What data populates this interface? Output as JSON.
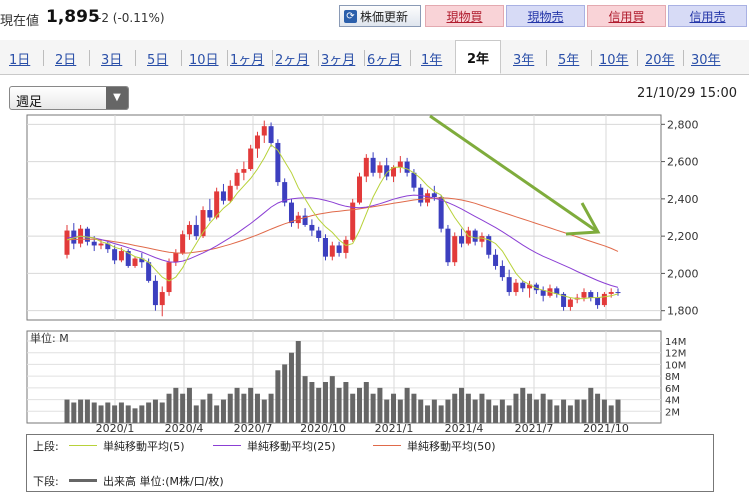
{
  "header": {
    "price_label": "現在値",
    "price": "1,895",
    "change": "-2 (-0.11%)",
    "refresh_label": "株価更新",
    "buttons": [
      {
        "label": "現物買",
        "type": "buy"
      },
      {
        "label": "現物売",
        "type": "sell"
      },
      {
        "label": "信用買",
        "type": "buy"
      },
      {
        "label": "信用売",
        "type": "sell"
      }
    ]
  },
  "tabs": [
    "1日",
    "2日",
    "3日",
    "5日",
    "10日",
    "1ヶ月",
    "2ヶ月",
    "3ヶ月",
    "6ヶ月",
    "1年",
    "2年",
    "3年",
    "5年",
    "10年",
    "20年",
    "30年"
  ],
  "active_tab": "2年",
  "period_select": "週足",
  "datetime": "21/10/29 15:00",
  "colors": {
    "up": "#e23a3a",
    "down": "#3c3fbf",
    "ma5": "#b8d23a",
    "ma25": "#8b3fd4",
    "ma50": "#e06a4a",
    "arrow": "#7fac3c",
    "volume": "#666666"
  },
  "legend": {
    "upper_label": "上段:",
    "lower_label": "下段:",
    "ma5": "単純移動平均(5)",
    "ma25": "単純移動平均(25)",
    "ma50": "単純移動平均(50)",
    "volume": "出来高 単位:(M株/口/枚)"
  },
  "chart_data": {
    "type": "candlestick",
    "y_ticks": [
      "2,800",
      "2,600",
      "2,400",
      "2,200",
      "2,000",
      "1,800"
    ],
    "ylim": [
      1750,
      2850
    ],
    "x_ticks": [
      "2020/1",
      "2020/4",
      "2020/7",
      "2020/10",
      "2021/1",
      "2021/4",
      "2021/7",
      "2021/10"
    ],
    "volume_unit_label": "単位: M",
    "volume_ticks": [
      "14M",
      "12M",
      "10M",
      "8M",
      "6M",
      "4M",
      "2M"
    ],
    "volume_ylim": [
      0,
      14
    ],
    "ohlc": [
      [
        2100,
        2260,
        2080,
        2230
      ],
      [
        2230,
        2270,
        2130,
        2160
      ],
      [
        2160,
        2260,
        2140,
        2240
      ],
      [
        2240,
        2250,
        2150,
        2170
      ],
      [
        2170,
        2200,
        2120,
        2150
      ],
      [
        2150,
        2180,
        2130,
        2160
      ],
      [
        2160,
        2170,
        2110,
        2130
      ],
      [
        2130,
        2150,
        2050,
        2070
      ],
      [
        2070,
        2140,
        2060,
        2120
      ],
      [
        2120,
        2130,
        2030,
        2040
      ],
      [
        2040,
        2090,
        2030,
        2080
      ],
      [
        2080,
        2110,
        2030,
        2060
      ],
      [
        2060,
        2080,
        1950,
        1960
      ],
      [
        1960,
        1990,
        1800,
        1830
      ],
      [
        1830,
        1930,
        1770,
        1900
      ],
      [
        1900,
        2080,
        1880,
        2060
      ],
      [
        2060,
        2130,
        2040,
        2110
      ],
      [
        2110,
        2230,
        2100,
        2210
      ],
      [
        2210,
        2280,
        2180,
        2260
      ],
      [
        2260,
        2310,
        2180,
        2200
      ],
      [
        2200,
        2360,
        2190,
        2340
      ],
      [
        2340,
        2400,
        2280,
        2300
      ],
      [
        2300,
        2460,
        2290,
        2440
      ],
      [
        2440,
        2480,
        2370,
        2390
      ],
      [
        2390,
        2500,
        2380,
        2470
      ],
      [
        2470,
        2560,
        2450,
        2540
      ],
      [
        2540,
        2600,
        2500,
        2560
      ],
      [
        2560,
        2690,
        2550,
        2670
      ],
      [
        2670,
        2760,
        2620,
        2740
      ],
      [
        2740,
        2820,
        2700,
        2790
      ],
      [
        2790,
        2810,
        2680,
        2700
      ],
      [
        2700,
        2720,
        2470,
        2490
      ],
      [
        2490,
        2510,
        2360,
        2380
      ],
      [
        2380,
        2400,
        2250,
        2270
      ],
      [
        2270,
        2330,
        2240,
        2310
      ],
      [
        2310,
        2350,
        2250,
        2260
      ],
      [
        2260,
        2290,
        2200,
        2230
      ],
      [
        2230,
        2250,
        2170,
        2190
      ],
      [
        2190,
        2210,
        2070,
        2090
      ],
      [
        2090,
        2170,
        2070,
        2150
      ],
      [
        2150,
        2170,
        2090,
        2110
      ],
      [
        2110,
        2200,
        2080,
        2180
      ],
      [
        2180,
        2400,
        2170,
        2380
      ],
      [
        2380,
        2540,
        2370,
        2520
      ],
      [
        2520,
        2640,
        2490,
        2620
      ],
      [
        2620,
        2650,
        2520,
        2540
      ],
      [
        2540,
        2600,
        2510,
        2580
      ],
      [
        2580,
        2620,
        2500,
        2520
      ],
      [
        2520,
        2580,
        2490,
        2570
      ],
      [
        2570,
        2630,
        2540,
        2600
      ],
      [
        2600,
        2620,
        2520,
        2540
      ],
      [
        2540,
        2560,
        2440,
        2460
      ],
      [
        2460,
        2480,
        2360,
        2380
      ],
      [
        2380,
        2450,
        2360,
        2430
      ],
      [
        2430,
        2470,
        2390,
        2410
      ],
      [
        2410,
        2420,
        2220,
        2240
      ],
      [
        2240,
        2260,
        2040,
        2060
      ],
      [
        2060,
        2220,
        2040,
        2200
      ],
      [
        2200,
        2240,
        2140,
        2160
      ],
      [
        2160,
        2250,
        2150,
        2230
      ],
      [
        2230,
        2240,
        2150,
        2170
      ],
      [
        2170,
        2220,
        2140,
        2200
      ],
      [
        2200,
        2210,
        2080,
        2100
      ],
      [
        2100,
        2130,
        2020,
        2040
      ],
      [
        2040,
        2070,
        1960,
        1980
      ],
      [
        1980,
        2020,
        1880,
        1900
      ],
      [
        1900,
        1970,
        1880,
        1950
      ],
      [
        1950,
        1960,
        1900,
        1920
      ],
      [
        1920,
        1960,
        1870,
        1940
      ],
      [
        1940,
        1950,
        1890,
        1910
      ],
      [
        1910,
        1930,
        1850,
        1880
      ],
      [
        1880,
        1940,
        1870,
        1920
      ],
      [
        1920,
        1930,
        1870,
        1890
      ],
      [
        1890,
        1900,
        1800,
        1820
      ],
      [
        1820,
        1870,
        1800,
        1860
      ],
      [
        1860,
        1890,
        1840,
        1870
      ],
      [
        1870,
        1920,
        1850,
        1900
      ],
      [
        1900,
        1910,
        1850,
        1870
      ],
      [
        1870,
        1900,
        1810,
        1830
      ],
      [
        1830,
        1900,
        1820,
        1890
      ],
      [
        1890,
        1920,
        1870,
        1900
      ],
      [
        1900,
        1920,
        1880,
        1895
      ]
    ],
    "ma5": [
      2180,
      2190,
      2200,
      2195,
      2190,
      2170,
      2160,
      2140,
      2130,
      2110,
      2090,
      2080,
      2060,
      2020,
      1980,
      1960,
      1980,
      2030,
      2100,
      2160,
      2220,
      2270,
      2310,
      2350,
      2380,
      2430,
      2470,
      2510,
      2560,
      2620,
      2690,
      2660,
      2600,
      2540,
      2460,
      2400,
      2340,
      2290,
      2250,
      2220,
      2180,
      2150,
      2160,
      2230,
      2320,
      2410,
      2480,
      2540,
      2570,
      2570,
      2560,
      2540,
      2510,
      2470,
      2440,
      2420,
      2360,
      2300,
      2250,
      2200,
      2190,
      2190,
      2180,
      2160,
      2120,
      2060,
      2000,
      1960,
      1940,
      1920,
      1910,
      1900,
      1890,
      1880,
      1870,
      1865,
      1865,
      1870,
      1870,
      1875,
      1880,
      1890
    ],
    "ma25": [
      2190,
      2195,
      2198,
      2196,
      2190,
      2182,
      2172,
      2160,
      2150,
      2138,
      2126,
      2115,
      2100,
      2085,
      2072,
      2062,
      2060,
      2066,
      2078,
      2094,
      2110,
      2128,
      2148,
      2170,
      2192,
      2216,
      2242,
      2268,
      2296,
      2326,
      2356,
      2378,
      2392,
      2400,
      2404,
      2406,
      2405,
      2400,
      2392,
      2382,
      2370,
      2360,
      2354,
      2352,
      2356,
      2364,
      2374,
      2386,
      2398,
      2408,
      2416,
      2420,
      2418,
      2412,
      2404,
      2394,
      2380,
      2364,
      2346,
      2326,
      2306,
      2286,
      2266,
      2246,
      2224,
      2200,
      2176,
      2152,
      2130,
      2110,
      2092,
      2076,
      2060,
      2044,
      2028,
      2010,
      1994,
      1978,
      1962,
      1948,
      1935,
      1925
    ],
    "ma50": [
      2180,
      2182,
      2183,
      2184,
      2183,
      2180,
      2176,
      2170,
      2164,
      2158,
      2150,
      2143,
      2136,
      2128,
      2120,
      2114,
      2110,
      2108,
      2110,
      2115,
      2120,
      2128,
      2136,
      2146,
      2156,
      2168,
      2180,
      2193,
      2207,
      2222,
      2238,
      2252,
      2266,
      2278,
      2290,
      2300,
      2310,
      2318,
      2324,
      2330,
      2334,
      2338,
      2342,
      2346,
      2352,
      2358,
      2364,
      2370,
      2376,
      2382,
      2388,
      2394,
      2398,
      2402,
      2404,
      2405,
      2404,
      2400,
      2394,
      2386,
      2376,
      2364,
      2352,
      2340,
      2328,
      2316,
      2304,
      2292,
      2280,
      2268,
      2256,
      2244,
      2232,
      2220,
      2208,
      2196,
      2184,
      2172,
      2160,
      2148,
      2134,
      2118
    ],
    "volume": [
      4,
      3.5,
      4,
      4,
      3.5,
      3,
      3.5,
      3,
      3.5,
      3,
      2.5,
      3,
      3.5,
      4,
      3.5,
      5,
      6,
      5,
      6,
      3,
      4,
      5,
      3,
      4,
      5,
      6,
      5,
      6,
      5,
      4,
      5,
      9,
      10,
      12,
      14,
      8,
      7,
      6,
      7,
      8,
      6,
      7,
      5,
      6,
      7,
      5,
      6,
      4,
      5,
      4,
      6,
      5,
      4,
      3,
      4,
      3,
      4,
      5,
      6,
      5,
      4,
      5,
      4,
      3,
      4,
      3,
      5,
      6,
      5,
      4,
      5,
      4,
      3,
      4,
      3,
      4,
      4,
      6,
      5,
      4,
      3,
      4
    ]
  }
}
